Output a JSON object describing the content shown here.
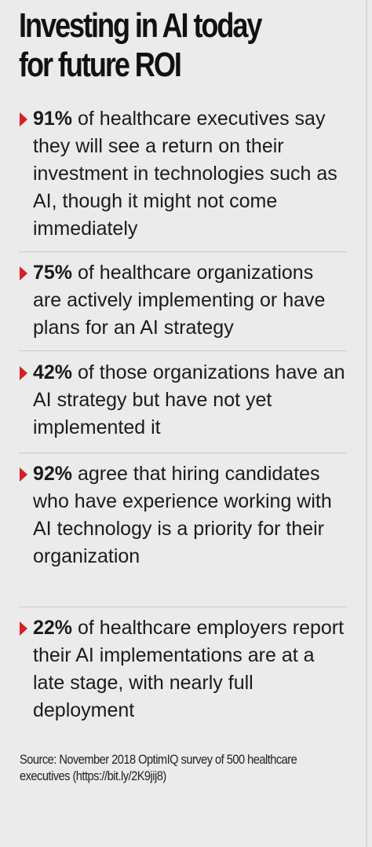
{
  "header": {
    "title_line1": "Investing in AI today",
    "title_line2": "for future ROI"
  },
  "stats": [
    {
      "percent": "91%",
      "text": " of healthcare executives say they will see a return on their investment in technologies such as AI, though it might not come immediately"
    },
    {
      "percent": "75%",
      "text": " of healthcare organizations are actively implementing or have plans for an AI strategy"
    },
    {
      "percent": "42%",
      "text": " of those organizations have an AI strategy but have not yet implemented it"
    },
    {
      "percent": "92%",
      "text": " agree that hiring candidates who have experience working with AI technology is a priority for their organization"
    },
    {
      "percent": "22%",
      "text": " of healthcare employers report their AI implementations are at a late stage, with nearly full deployment"
    }
  ],
  "footer": {
    "source": "Source: November 2018 OptimIQ survey of 500 healthcare executives (https://bit.ly/2K9jij8)"
  },
  "colors": {
    "accent": "#d31f27",
    "background": "#ebebeb",
    "text": "#1b1b1b"
  },
  "icons": {
    "bullet": "red-triangle-icon"
  }
}
